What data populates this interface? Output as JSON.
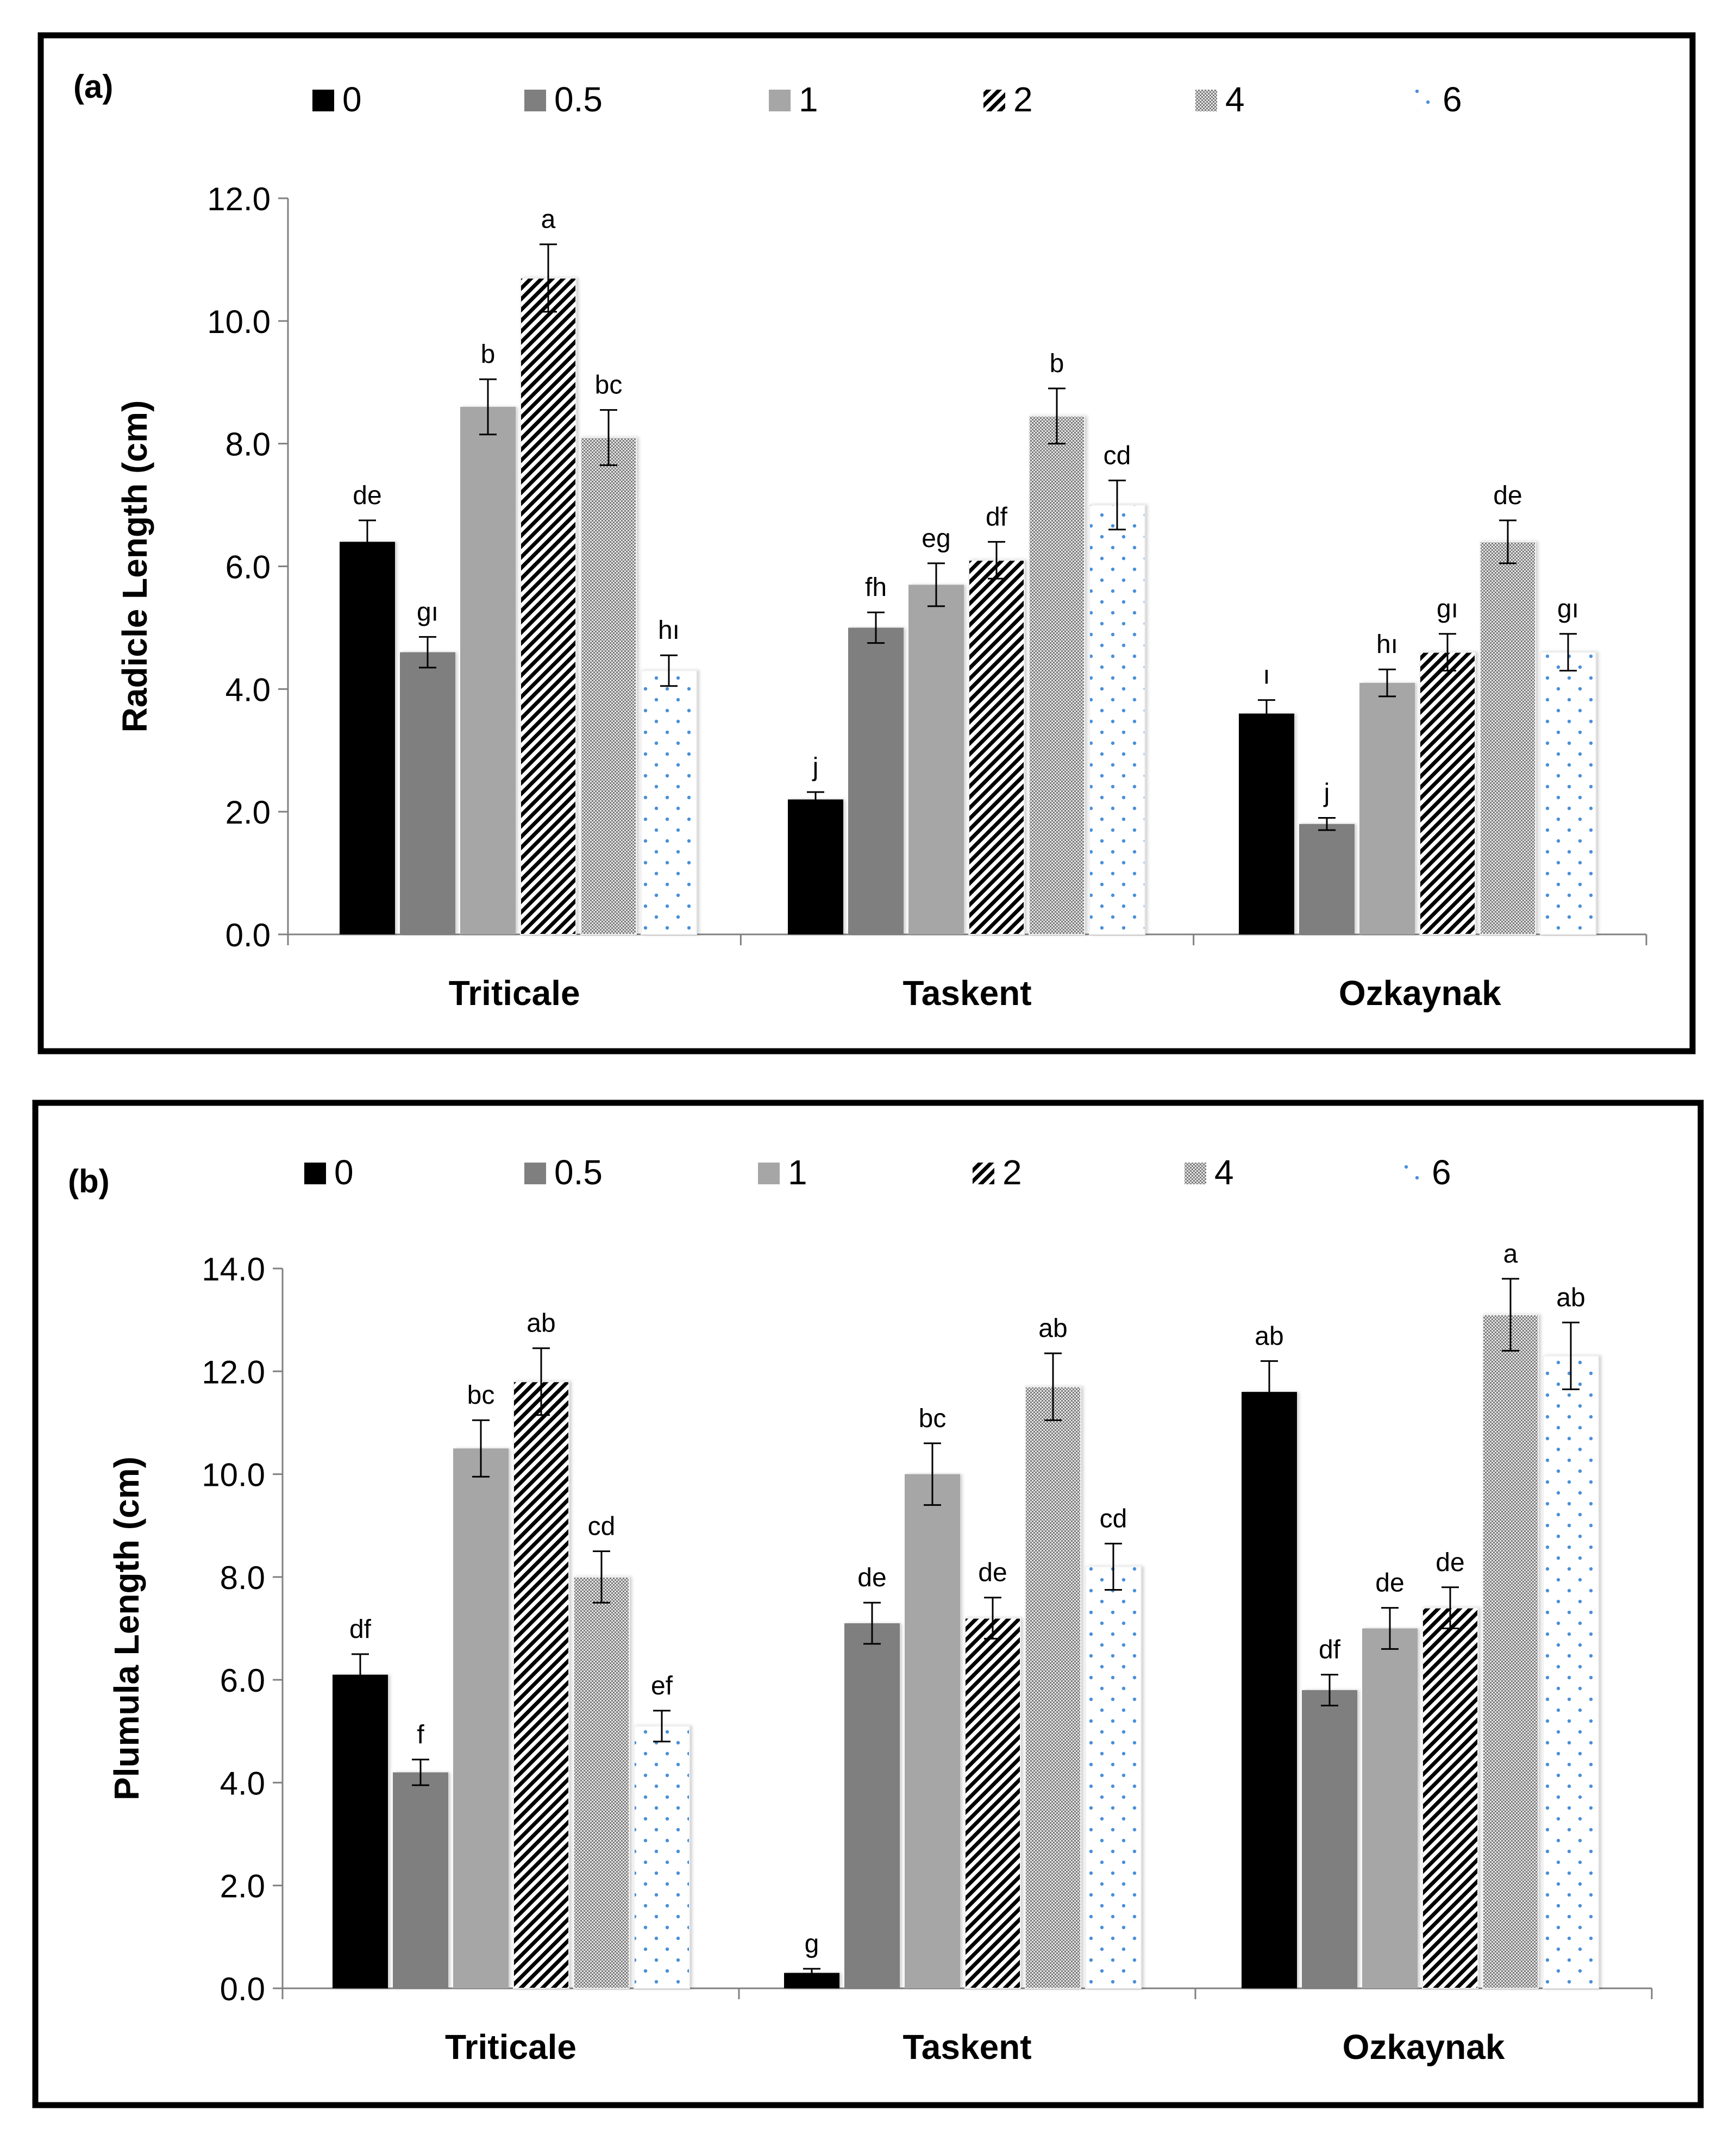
{
  "chart_data": [
    {
      "type": "bar",
      "panel_label": "(a)",
      "ylabel": "Radicle Length (cm)",
      "xlabel": "",
      "categories": [
        "Triticale",
        "Taskent",
        "Ozkaynak"
      ],
      "ylim": [
        0,
        12
      ],
      "yticks": [
        "0.0",
        "2.0",
        "4.0",
        "6.0",
        "8.0",
        "10.0",
        "12.0"
      ],
      "legend_position": "top",
      "series": [
        {
          "name": "0",
          "values": [
            6.4,
            2.2,
            3.6
          ],
          "errors": [
            0.35,
            0.12,
            0.22
          ],
          "letters": [
            "de",
            "j",
            "ı"
          ]
        },
        {
          "name": "0.5",
          "values": [
            4.6,
            5.0,
            1.8
          ],
          "errors": [
            0.25,
            0.25,
            0.1
          ],
          "letters": [
            "gı",
            "fh",
            "j"
          ]
        },
        {
          "name": "1",
          "values": [
            8.6,
            5.7,
            4.1
          ],
          "errors": [
            0.45,
            0.35,
            0.22
          ],
          "letters": [
            "b",
            "eg",
            "hı"
          ]
        },
        {
          "name": "2",
          "values": [
            10.7,
            6.1,
            4.6
          ],
          "errors": [
            0.55,
            0.3,
            0.3
          ],
          "letters": [
            "a",
            "df",
            "gı"
          ]
        },
        {
          "name": "4",
          "values": [
            8.1,
            8.45,
            6.4
          ],
          "errors": [
            0.45,
            0.45,
            0.35
          ],
          "letters": [
            "bc",
            "b",
            "de"
          ]
        },
        {
          "name": "6",
          "values": [
            4.3,
            7.0,
            4.6
          ],
          "errors": [
            0.25,
            0.4,
            0.3
          ],
          "letters": [
            "hı",
            "cd",
            "gı"
          ]
        }
      ]
    },
    {
      "type": "bar",
      "panel_label": "(b)",
      "ylabel": "Plumula Length (cm)",
      "xlabel": "",
      "categories": [
        "Triticale",
        "Taskent",
        "Ozkaynak"
      ],
      "ylim": [
        0,
        14
      ],
      "yticks": [
        "0.0",
        "2.0",
        "4.0",
        "6.0",
        "8.0",
        "10.0",
        "12.0",
        "14.0"
      ],
      "legend_position": "top",
      "series": [
        {
          "name": "0",
          "values": [
            6.1,
            0.3,
            11.6
          ],
          "errors": [
            0.4,
            0.08,
            0.6
          ],
          "letters": [
            "df",
            "g",
            "ab"
          ]
        },
        {
          "name": "0.5",
          "values": [
            4.2,
            7.1,
            5.8
          ],
          "errors": [
            0.25,
            0.4,
            0.3
          ],
          "letters": [
            "f",
            "de",
            "df"
          ]
        },
        {
          "name": "1",
          "values": [
            10.5,
            10.0,
            7.0
          ],
          "errors": [
            0.55,
            0.6,
            0.4
          ],
          "letters": [
            "bc",
            "bc",
            "de"
          ]
        },
        {
          "name": "2",
          "values": [
            11.8,
            7.2,
            7.4
          ],
          "errors": [
            0.65,
            0.4,
            0.4
          ],
          "letters": [
            "ab",
            "de",
            "de"
          ]
        },
        {
          "name": "4",
          "values": [
            8.0,
            11.7,
            13.1
          ],
          "errors": [
            0.5,
            0.65,
            0.7
          ],
          "letters": [
            "cd",
            "ab",
            "a"
          ]
        },
        {
          "name": "6",
          "values": [
            5.1,
            8.2,
            12.3
          ],
          "errors": [
            0.3,
            0.45,
            0.65
          ],
          "letters": [
            "ef",
            "cd",
            "ab"
          ]
        }
      ]
    }
  ],
  "style": {
    "series_fills": [
      "#000000",
      "#7f7f7f",
      "#a6a6a6",
      "pattern-diagonal",
      "pattern-dots-dense",
      "pattern-dots-blue"
    ],
    "axis_color": "#808080",
    "frame_color": "#000000",
    "dot_blue": "#4a90d9"
  }
}
